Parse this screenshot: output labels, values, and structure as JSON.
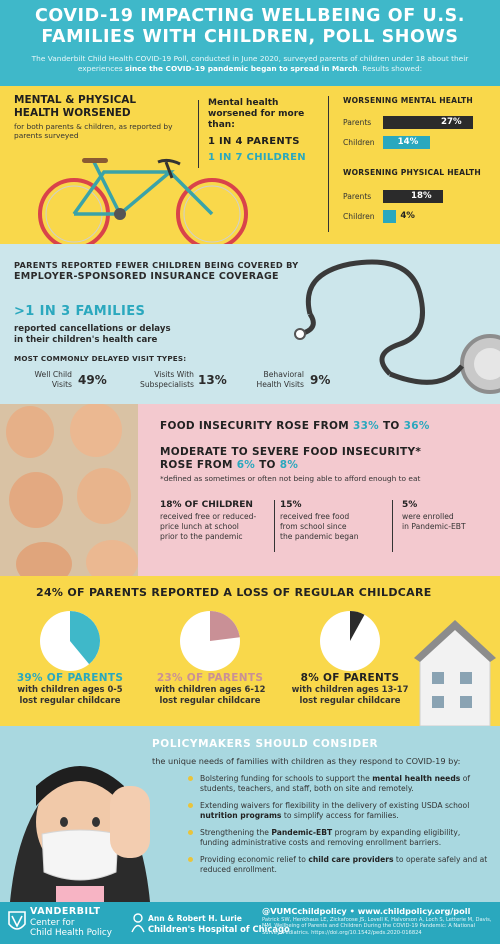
{
  "header": {
    "title_line1": "COVID-19 IMPACTING WELLBEING OF U.S.",
    "title_line2": "FAMILIES WITH CHILDREN, POLL SHOWS",
    "intro_part1": "The Vanderbilt Child Health COVID-19 Poll, conducted in June 2020, surveyed parents of children under 18 about their experiences ",
    "intro_bold": "since the COVID-19 pandemic began to spread in March",
    "intro_part2": ". Results showed:"
  },
  "health": {
    "title_line1": "MENTAL & PHYSICAL",
    "title_line2": "HEALTH WORSENED",
    "subtitle": "for both parents & children, as reported by parents surveyed",
    "mh_intro": "Mental health worsened for more than:",
    "fraction_parents": "1 IN 4 PARENTS",
    "fraction_children": "1 IN 7 CHILDREN"
  },
  "chart_data": [
    {
      "type": "bar",
      "title": "WORSENING MENTAL HEALTH",
      "categories": [
        "Parents",
        "Children"
      ],
      "values": [
        27,
        14
      ],
      "value_labels": [
        "27%",
        "14%"
      ],
      "colors": [
        "#2b2b2b",
        "#2aa8be"
      ]
    },
    {
      "type": "bar",
      "title": "WORSENING PHYSICAL HEALTH",
      "categories": [
        "Parents",
        "Children"
      ],
      "values": [
        18,
        4
      ],
      "value_labels": [
        "18%",
        "4%"
      ],
      "colors": [
        "#2b2b2b",
        "#2aa8be"
      ]
    },
    {
      "type": "pie",
      "title": "24% OF PARENTS REPORTED A LOSS OF REGULAR CHILDCARE",
      "series": [
        {
          "name": "39% OF PARENTS",
          "caption_line1": "with children ages 0-5",
          "caption_line2": "lost regular childcare",
          "value": 39,
          "color": "#3fb8c9"
        },
        {
          "name": "23% OF PARENTS",
          "caption_line1": "with children ages 6-12",
          "caption_line2": "lost regular childcare",
          "value": 23,
          "color": "#c99096"
        },
        {
          "name": "8% OF PARENTS",
          "caption_line1": "with children ages 13-17",
          "caption_line2": "lost regular childcare",
          "value": 8,
          "color": "#2b2b2b"
        }
      ]
    }
  ],
  "insurance": {
    "title_line1": "PARENTS REPORTED FEWER CHILDREN BEING COVERED BY",
    "title_line2": "EMPLOYER-SPONSORED INSURANCE COVERAGE",
    "big": ">1 IN 3 FAMILIES",
    "desc_line1": "reported cancellations or delays",
    "desc_line2": "in their children's health care",
    "most": "MOST COMMONLY DELAYED VISIT TYPES:",
    "visits": [
      {
        "label_line1": "Well Child",
        "label_line2": "Visits",
        "pct": "49%"
      },
      {
        "label_line1": "Visits With",
        "label_line2": "Subspecialists",
        "pct": "13%"
      },
      {
        "label_line1": "Behavioral",
        "label_line2": "Health Visits",
        "pct": "9%"
      }
    ]
  },
  "food": {
    "line1_a": "FOOD INSECURITY ROSE FROM ",
    "line1_from": "33%",
    "line1_b": " TO ",
    "line1_to": "36%",
    "line2_a": "MODERATE TO SEVERE FOOD INSECURITY*",
    "line2_b": "ROSE FROM ",
    "line2_from": "6%",
    "line2_c": " TO ",
    "line2_to": "8%",
    "definition": "*defined as sometimes or often not being able to afford enough to eat",
    "cols": [
      {
        "head": "18% OF CHILDREN",
        "l1": "received free or reduced-",
        "l2": "price lunch at school",
        "l3": "prior to the pandemic"
      },
      {
        "head": "15%",
        "l1": "received free food",
        "l2": "from school since",
        "l3": "the pandemic began"
      },
      {
        "head": "5%",
        "l1": "were enrolled",
        "l2": "in Pandemic-EBT",
        "l3": ""
      }
    ]
  },
  "policy": {
    "title": "POLICYMAKERS SHOULD CONSIDER",
    "subtitle": "the unique needs of families with children as they respond to COVID-19 by:",
    "items": [
      {
        "a": "Bolstering funding for schools to support the ",
        "b": "mental health needs",
        "c": " of students, teachers, and staff, both on site and remotely."
      },
      {
        "a": "Extending waivers for flexibility in the delivery of existing USDA school ",
        "b": "nutrition programs",
        "c": " to simplify access for families."
      },
      {
        "a": "Strengthening the ",
        "b": "Pandemic-EBT",
        "c": " program by expanding eligibility, funding administrative costs and removing enrollment barriers."
      },
      {
        "a": "Providing economic relief to ",
        "b": "child care providers",
        "c": " to operate safely and at reduced enrollment."
      }
    ]
  },
  "footer": {
    "vu_name": "VANDERBILT",
    "vu_center": "Center for",
    "vu_center2": "Child Health Policy",
    "lurie_1": "Ann & Robert H. Lurie",
    "lurie_2": "Children's Hospital of Chicago",
    "handle": "@VUMCchildpolicy • www.childpolicy.org/poll",
    "citation": "Patrick SW, Henkhaus LE, Zickafoose JS, Lovell K, Halvorson A, Loch S, Letterie M, Davis, MM. Wellbeing of Parents and Children During the COVID-19 Pandemic: A National Survey. Pediatrics. https://doi.org/10.1542/peds.2020-016824"
  }
}
